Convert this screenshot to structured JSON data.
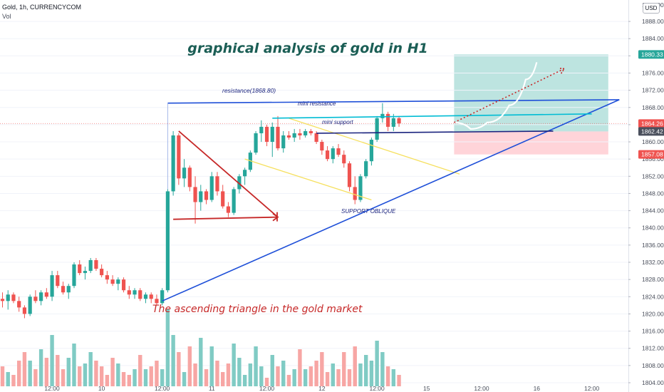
{
  "header": {
    "symbol": "Gold, 1h, CURRENCYCOM",
    "volume_label": "Vol",
    "currency_button": "USD"
  },
  "colors": {
    "up": "#26a69a",
    "down": "#ef5350",
    "up_volume": "#80cbc4",
    "down_volume": "#f7a6a4",
    "resistance": "#1e4fd8",
    "mini_resistance": "#00bcd4",
    "mini_support": "#1a237e",
    "channel": "#f6e05e",
    "triangle": "#c62828",
    "target_zone": "#b2dfdb",
    "stop_zone": "#ffcdd2",
    "title_text": "#1b5e55",
    "subtitle_text": "#c62828",
    "price_line": "#ef5350"
  },
  "chart_data": {
    "type": "candlestick",
    "title": "graphical analysis of gold in H1",
    "subtitle": "The ascending triangle in the gold market",
    "y_axis": {
      "ticks": [
        1804,
        1808,
        1812,
        1816,
        1820,
        1824,
        1828,
        1832,
        1836,
        1840,
        1844,
        1848,
        1852,
        1856,
        1860,
        1864,
        1868,
        1872,
        1876,
        1880,
        1884,
        1888
      ],
      "ylim": [
        1803.5,
        1890
      ],
      "top_clipped_label": "1888.00"
    },
    "x_axis": {
      "ticks": [
        {
          "label": "12:00",
          "bar": 9
        },
        {
          "label": "10",
          "bar": 18
        },
        {
          "label": "12:00",
          "bar": 29
        },
        {
          "label": "11",
          "bar": 38
        },
        {
          "label": "12:00",
          "bar": 48
        },
        {
          "label": "12",
          "bar": 58
        },
        {
          "label": "12:00",
          "bar": 68
        },
        {
          "label": "15",
          "bar": 77
        },
        {
          "label": "12:00",
          "bar": 87
        },
        {
          "label": "16",
          "bar": 97
        },
        {
          "label": "12:00",
          "bar": 107
        }
      ]
    },
    "price_badges": [
      {
        "label": "1880.33",
        "value": 1880.33,
        "color": "#26a69a"
      },
      {
        "label": "1864.26",
        "value": 1864.26,
        "color": "#ef5350"
      },
      {
        "label": "1862.42",
        "value": 1862.42,
        "color": "#4a4f5c"
      },
      {
        "label": "1857.08",
        "value": 1857.08,
        "color": "#ef5350"
      }
    ],
    "candles": [
      [
        1823.5,
        1825.0,
        1821.5,
        1823.0
      ],
      [
        1823.0,
        1825.5,
        1821.0,
        1824.5
      ],
      [
        1824.5,
        1825.0,
        1822.5,
        1823.0
      ],
      [
        1823.0,
        1824.0,
        1820.5,
        1821.5
      ],
      [
        1821.5,
        1822.0,
        1819.0,
        1820.0
      ],
      [
        1820.0,
        1824.5,
        1819.5,
        1824.0
      ],
      [
        1824.0,
        1825.5,
        1822.5,
        1823.0
      ],
      [
        1823.0,
        1825.5,
        1822.0,
        1825.0
      ],
      [
        1825.0,
        1826.0,
        1823.5,
        1824.0
      ],
      [
        1824.0,
        1830.0,
        1823.0,
        1829.0
      ],
      [
        1829.0,
        1830.0,
        1826.0,
        1826.5
      ],
      [
        1826.5,
        1827.5,
        1824.5,
        1825.0
      ],
      [
        1825.0,
        1827.0,
        1823.5,
        1826.5
      ],
      [
        1826.5,
        1832.0,
        1826.0,
        1831.5
      ],
      [
        1831.5,
        1832.5,
        1829.0,
        1829.5
      ],
      [
        1829.5,
        1831.0,
        1828.0,
        1830.0
      ],
      [
        1830.0,
        1833.0,
        1829.5,
        1832.5
      ],
      [
        1832.5,
        1833.0,
        1830.0,
        1830.5
      ],
      [
        1830.5,
        1831.5,
        1828.5,
        1829.0
      ],
      [
        1829.0,
        1830.0,
        1827.0,
        1828.0
      ],
      [
        1828.0,
        1829.0,
        1826.5,
        1827.0
      ],
      [
        1827.0,
        1828.5,
        1825.5,
        1828.0
      ],
      [
        1828.0,
        1828.5,
        1825.0,
        1825.5
      ],
      [
        1825.5,
        1826.5,
        1823.5,
        1824.5
      ],
      [
        1824.5,
        1826.0,
        1823.5,
        1825.5
      ],
      [
        1825.5,
        1826.0,
        1823.0,
        1823.5
      ],
      [
        1823.5,
        1825.0,
        1822.5,
        1824.5
      ],
      [
        1824.5,
        1825.0,
        1822.5,
        1823.5
      ],
      [
        1823.5,
        1824.5,
        1822.0,
        1822.5
      ],
      [
        1822.5,
        1826.0,
        1822.0,
        1825.5
      ],
      [
        1825.5,
        1849.0,
        1825.0,
        1848.5
      ],
      [
        1848.5,
        1862.5,
        1847.5,
        1861.5
      ],
      [
        1861.5,
        1862.0,
        1850.0,
        1851.5
      ],
      [
        1851.5,
        1856.0,
        1849.5,
        1854.0
      ],
      [
        1854.0,
        1854.5,
        1848.5,
        1849.5
      ],
      [
        1849.5,
        1852.0,
        1841.0,
        1846.0
      ],
      [
        1846.0,
        1850.0,
        1844.0,
        1848.5
      ],
      [
        1848.5,
        1849.0,
        1845.5,
        1846.5
      ],
      [
        1846.5,
        1853.0,
        1846.0,
        1852.0
      ],
      [
        1852.0,
        1853.0,
        1847.5,
        1848.5
      ],
      [
        1848.5,
        1850.0,
        1844.5,
        1845.0
      ],
      [
        1845.0,
        1846.0,
        1842.5,
        1843.5
      ],
      [
        1843.5,
        1849.5,
        1843.0,
        1849.0
      ],
      [
        1849.0,
        1852.5,
        1848.0,
        1852.0
      ],
      [
        1852.0,
        1854.0,
        1850.0,
        1853.5
      ],
      [
        1853.5,
        1858.0,
        1853.0,
        1857.5
      ],
      [
        1857.5,
        1862.5,
        1857.0,
        1862.0
      ],
      [
        1862.0,
        1865.0,
        1860.0,
        1863.5
      ],
      [
        1863.5,
        1864.0,
        1859.0,
        1860.0
      ],
      [
        1860.0,
        1864.5,
        1856.5,
        1863.5
      ],
      [
        1863.5,
        1866.0,
        1858.0,
        1858.5
      ],
      [
        1858.5,
        1862.5,
        1857.5,
        1861.5
      ],
      [
        1861.5,
        1862.5,
        1860.5,
        1861.0
      ],
      [
        1861.0,
        1863.0,
        1860.0,
        1862.0
      ],
      [
        1862.0,
        1863.0,
        1860.5,
        1861.5
      ],
      [
        1861.5,
        1863.0,
        1861.0,
        1862.5
      ],
      [
        1862.5,
        1863.0,
        1861.5,
        1862.0
      ],
      [
        1862.0,
        1862.5,
        1859.5,
        1860.0
      ],
      [
        1860.0,
        1860.5,
        1857.0,
        1858.0
      ],
      [
        1858.0,
        1859.0,
        1855.5,
        1856.0
      ],
      [
        1856.0,
        1859.0,
        1855.0,
        1858.5
      ],
      [
        1858.5,
        1859.5,
        1856.5,
        1857.0
      ],
      [
        1857.0,
        1858.0,
        1854.0,
        1855.0
      ],
      [
        1855.0,
        1855.5,
        1848.5,
        1849.5
      ],
      [
        1849.5,
        1852.0,
        1845.5,
        1846.5
      ],
      [
        1846.5,
        1852.5,
        1846.0,
        1852.0
      ],
      [
        1852.0,
        1856.0,
        1851.5,
        1855.5
      ],
      [
        1855.5,
        1861.0,
        1854.5,
        1860.5
      ],
      [
        1860.5,
        1866.0,
        1860.0,
        1865.5
      ],
      [
        1865.5,
        1869.0,
        1864.5,
        1866.5
      ],
      [
        1866.5,
        1867.0,
        1862.5,
        1863.5
      ],
      [
        1863.5,
        1866.5,
        1862.5,
        1865.5
      ],
      [
        1865.5,
        1866.0,
        1863.5,
        1864.3
      ]
    ],
    "volumes": [
      7,
      5,
      4,
      9,
      12,
      9,
      6,
      13,
      10,
      18,
      11,
      6,
      10,
      15,
      7,
      8,
      12,
      9,
      7,
      4,
      10,
      8,
      5,
      4,
      6,
      11,
      6,
      7,
      9,
      6,
      27,
      18,
      12,
      5,
      14,
      8,
      17,
      6,
      14,
      9,
      5,
      8,
      15,
      10,
      4,
      8,
      14,
      7,
      3,
      11,
      7,
      9,
      4,
      6,
      13,
      6,
      7,
      9,
      12,
      5,
      8,
      6,
      12,
      6,
      14,
      8,
      11,
      9,
      16,
      12,
      7,
      6,
      4
    ],
    "volume_directions": [
      "d",
      "u",
      "d",
      "d",
      "d",
      "u",
      "d",
      "u",
      "d",
      "u",
      "d",
      "d",
      "u",
      "u",
      "d",
      "u",
      "u",
      "d",
      "d",
      "d",
      "d",
      "u",
      "d",
      "d",
      "u",
      "d",
      "u",
      "d",
      "d",
      "u",
      "u",
      "u",
      "d",
      "u",
      "d",
      "d",
      "u",
      "d",
      "u",
      "d",
      "d",
      "d",
      "u",
      "u",
      "u",
      "u",
      "u",
      "u",
      "d",
      "u",
      "d",
      "u",
      "d",
      "u",
      "d",
      "u",
      "d",
      "d",
      "d",
      "d",
      "u",
      "d",
      "d",
      "d",
      "d",
      "u",
      "u",
      "u",
      "u",
      "u",
      "d",
      "u",
      "d"
    ],
    "annotations": {
      "resistance_label": "resistance(1868.80)",
      "mini_resistance_label": "mini resistance",
      "mini_support_label": "mini support",
      "support_oblique_label": "SUPPORT OBLIQUE"
    },
    "drawings": {
      "resistance": {
        "from": [
          30,
          1869.0
        ],
        "to": [
          112,
          1869.8
        ]
      },
      "support_oblique": {
        "from": [
          29,
          1823.0
        ],
        "to": [
          112,
          1869.8
        ]
      },
      "mini_resistance": {
        "from": [
          49,
          1865.5
        ],
        "to": [
          107,
          1866.5
        ]
      },
      "mini_support": {
        "from": [
          57,
          1862.0
        ],
        "to": [
          100,
          1862.5
        ]
      },
      "channel_upper": {
        "from": [
          52,
          1865.5
        ],
        "to": [
          83,
          1852.5
        ]
      },
      "channel_lower": {
        "from": [
          44,
          1856.0
        ],
        "to": [
          67,
          1846.5
        ]
      },
      "triangle": {
        "top": [
          32,
          1862.5
        ],
        "bottom_left": [
          31,
          1842.0
        ],
        "bottom_right": [
          50,
          1842.5
        ]
      },
      "trade_box": {
        "x_from": 82,
        "x_to": 110,
        "target": 1880.33,
        "entry": 1862.42,
        "stop": 1857.08
      },
      "projection_white": [
        [
          82,
          1864.5
        ],
        [
          85,
          1863.0
        ],
        [
          88,
          1864.5
        ],
        [
          92,
          1868.5
        ],
        [
          95,
          1874.5
        ],
        [
          97,
          1878.5
        ]
      ],
      "projection_dotted": {
        "from": [
          82,
          1864.5
        ],
        "to": [
          102,
          1877.0
        ]
      }
    }
  }
}
